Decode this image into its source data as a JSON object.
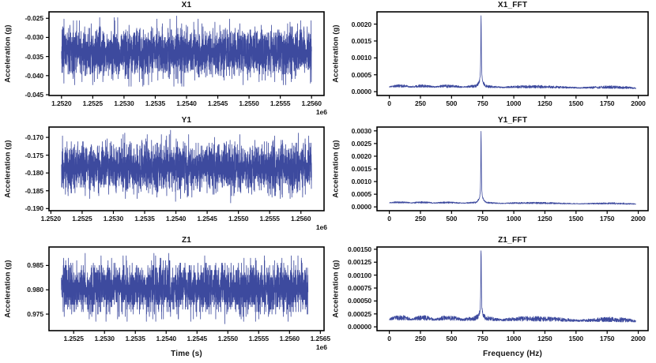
{
  "figure": {
    "background": "#ffffff",
    "line_color": "#3d4a9e",
    "frame_color": "#000000",
    "text_color": "#141414"
  },
  "chart_data": [
    {
      "id": "X1",
      "type": "line",
      "title": "X1",
      "ylabel": "Acceleration (g)",
      "xlabel": "",
      "x_offset_label": "1e6",
      "xlim": [
        1251800,
        1256200
      ],
      "ylim": [
        -0.0452,
        -0.0233
      ],
      "xticks": {
        "values": [
          1252000,
          1252500,
          1253000,
          1253500,
          1254000,
          1254500,
          1255000,
          1255500,
          1256000
        ],
        "labels": [
          "1.2520",
          "1.2525",
          "1.2530",
          "1.2535",
          "1.2540",
          "1.2545",
          "1.2550",
          "1.2555",
          "1.2560"
        ]
      },
      "yticks": {
        "values": [
          -0.025,
          -0.03,
          -0.035,
          -0.04,
          -0.045
        ],
        "labels": [
          "-0.025",
          "-0.030",
          "-0.035",
          "-0.040",
          "-0.045"
        ]
      },
      "signal": {
        "kind": "noise",
        "x_start": 1252000,
        "x_end": 1256000,
        "mean": -0.0338,
        "spread": 0.01,
        "quant": 0.0004,
        "n": 3000,
        "seed": 7
      }
    },
    {
      "id": "X1_FFT",
      "type": "line",
      "title": "X1_FFT",
      "ylabel": "Acceleration (g)",
      "xlabel": "",
      "x_offset_label": "",
      "xlim": [
        -99,
        2079
      ],
      "ylim": [
        -0.000113,
        0.002363
      ],
      "xticks": {
        "values": [
          0,
          250,
          500,
          750,
          1000,
          1250,
          1500,
          1750,
          2000
        ],
        "labels": [
          "0",
          "250",
          "500",
          "750",
          "1000",
          "1250",
          "1500",
          "1750",
          "2000"
        ]
      },
      "yticks": {
        "values": [
          0.0,
          0.0005,
          0.001,
          0.0015,
          0.002
        ],
        "labels": [
          "0.0000",
          "0.0005",
          "0.0010",
          "0.0015",
          "0.0020"
        ]
      },
      "signal": {
        "kind": "fft",
        "x_start": 0,
        "x_end": 1980,
        "floor": 0.00013,
        "ripple": 9e-05,
        "decay": 0.35,
        "peak_freq": 737,
        "peak_value": 0.00225,
        "n": 1500,
        "seed": 17
      }
    },
    {
      "id": "Y1",
      "type": "line",
      "title": "Y1",
      "ylabel": "Acceleration (g)",
      "xlabel": "",
      "x_offset_label": "1e6",
      "xlim": [
        1251970,
        1256370
      ],
      "ylim": [
        -0.1906,
        -0.1671
      ],
      "xticks": {
        "values": [
          1252000,
          1252500,
          1253000,
          1253500,
          1254000,
          1254500,
          1255000,
          1255500,
          1256000
        ],
        "labels": [
          "1.2520",
          "1.2525",
          "1.2530",
          "1.2535",
          "1.2540",
          "1.2545",
          "1.2550",
          "1.2555",
          "1.2560"
        ]
      },
      "yticks": {
        "values": [
          -0.17,
          -0.175,
          -0.18,
          -0.185,
          -0.19
        ],
        "labels": [
          "-0.170",
          "-0.175",
          "-0.180",
          "-0.185",
          "-0.190"
        ]
      },
      "signal": {
        "kind": "noise",
        "x_start": 1252170,
        "x_end": 1256170,
        "mean": -0.1785,
        "spread": 0.0106,
        "quant": 0.0004,
        "n": 3000,
        "seed": 8
      }
    },
    {
      "id": "Y1_FFT",
      "type": "line",
      "title": "Y1_FFT",
      "ylabel": "Acceleration (g)",
      "xlabel": "",
      "x_offset_label": "",
      "xlim": [
        -99,
        2079
      ],
      "ylim": [
        -0.00015,
        0.00315
      ],
      "xticks": {
        "values": [
          0,
          250,
          500,
          750,
          1000,
          1250,
          1500,
          1750,
          2000
        ],
        "labels": [
          "0",
          "250",
          "500",
          "750",
          "1000",
          "1250",
          "1500",
          "1750",
          "2000"
        ]
      },
      "yticks": {
        "values": [
          0.0,
          0.0005,
          0.001,
          0.0015,
          0.002,
          0.0025,
          0.003
        ],
        "labels": [
          "0.0000",
          "0.0005",
          "0.0010",
          "0.0015",
          "0.0020",
          "0.0025",
          "0.0030"
        ]
      },
      "signal": {
        "kind": "fft",
        "x_start": 0,
        "x_end": 1980,
        "floor": 0.00015,
        "ripple": 7e-05,
        "decay": 0.35,
        "peak_freq": 737,
        "peak_value": 0.00298,
        "n": 1500,
        "seed": 19
      }
    },
    {
      "id": "Z1",
      "type": "line",
      "title": "Z1",
      "ylabel": "Acceleration (g)",
      "xlabel": "Time (s)",
      "x_offset_label": "1e6",
      "xlim": [
        1252100,
        1256560
      ],
      "ylim": [
        0.9716,
        0.9888
      ],
      "xticks": {
        "values": [
          1252500,
          1253000,
          1253500,
          1254000,
          1254500,
          1255000,
          1255500,
          1256000,
          1256500
        ],
        "labels": [
          "1.2525",
          "1.2530",
          "1.2535",
          "1.2540",
          "1.2545",
          "1.2550",
          "1.2555",
          "1.2560",
          "1.2565"
        ]
      },
      "yticks": {
        "values": [
          0.975,
          0.98,
          0.985
        ],
        "labels": [
          "0.975",
          "0.980",
          "0.985"
        ]
      },
      "signal": {
        "kind": "noise",
        "x_start": 1252300,
        "x_end": 1256300,
        "mean": 0.9802,
        "spread": 0.0079,
        "quant": 0.0005,
        "n": 3000,
        "seed": 9
      }
    },
    {
      "id": "Z1_FFT",
      "type": "line",
      "title": "Z1_FFT",
      "ylabel": "Acceleration (g)",
      "xlabel": "Frequency (Hz)",
      "x_offset_label": "",
      "xlim": [
        -99,
        2079
      ],
      "ylim": [
        -7.35e-05,
        0.0015435
      ],
      "xticks": {
        "values": [
          0,
          250,
          500,
          750,
          1000,
          1250,
          1500,
          1750,
          2000
        ],
        "labels": [
          "0",
          "250",
          "500",
          "750",
          "1000",
          "1250",
          "1500",
          "1750",
          "2000"
        ]
      },
      "yticks": {
        "values": [
          0.0,
          0.00025,
          0.0005,
          0.00075,
          0.001,
          0.00125,
          0.0015
        ],
        "labels": [
          "0.00000",
          "0.00025",
          "0.00050",
          "0.00075",
          "0.00100",
          "0.00125",
          "0.00150"
        ]
      },
      "signal": {
        "kind": "fft",
        "x_start": 0,
        "x_end": 1980,
        "floor": 0.00013,
        "ripple": 0.0001,
        "decay": 0.3,
        "peak_freq": 737,
        "peak_value": 0.00147,
        "n": 1500,
        "seed": 23
      }
    }
  ]
}
